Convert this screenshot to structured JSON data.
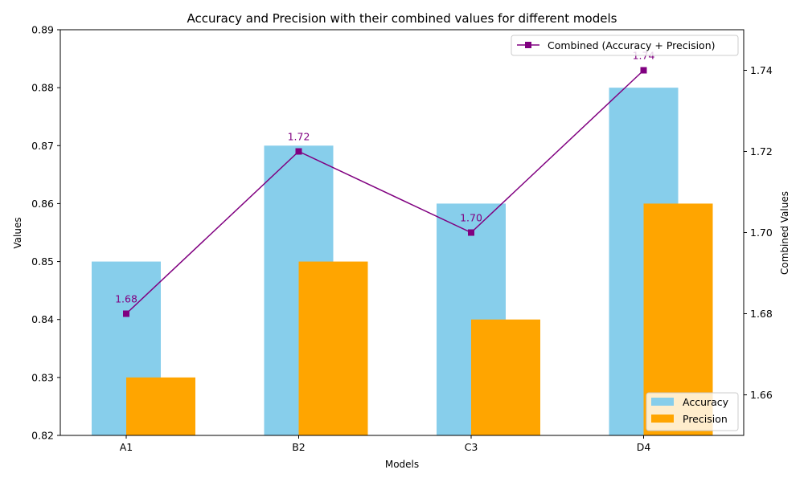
{
  "chart_data": {
    "type": "bar",
    "title": "Accuracy and Precision with their combined values for different models",
    "xlabel": "Models",
    "ylabel": "Values",
    "y2label": "Combined Values",
    "categories": [
      "A1",
      "B2",
      "C3",
      "D4"
    ],
    "ylim": [
      0.82,
      0.89
    ],
    "yticks": [
      "0.82",
      "0.83",
      "0.84",
      "0.85",
      "0.86",
      "0.87",
      "0.88",
      "0.89"
    ],
    "y2lim": [
      1.65,
      1.75
    ],
    "y2ticks": [
      "1.66",
      "1.68",
      "1.70",
      "1.72",
      "1.74"
    ],
    "series": [
      {
        "name": "Accuracy",
        "type": "bar",
        "axis": "left",
        "color": "#87CEEB",
        "values": [
          0.85,
          0.87,
          0.86,
          0.88
        ]
      },
      {
        "name": "Precision",
        "type": "bar",
        "axis": "left",
        "color": "#FFA500",
        "values": [
          0.83,
          0.85,
          0.84,
          0.86
        ]
      },
      {
        "name": "Combined (Accuracy + Precision)",
        "type": "line",
        "axis": "right",
        "color": "#800080",
        "marker": "square",
        "values": [
          1.68,
          1.72,
          1.7,
          1.74
        ],
        "labels": [
          "1.68",
          "1.72",
          "1.70",
          "1.74"
        ]
      }
    ],
    "legend_line_placement": "top-right",
    "legend_bar_placement": "bottom-right",
    "grid": false
  }
}
